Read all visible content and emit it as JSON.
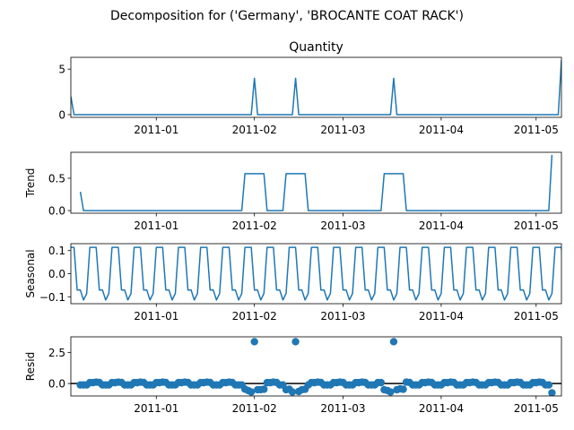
{
  "figure": {
    "suptitle": "Decomposition for ('Germany', 'BROCANTE COAT RACK')"
  },
  "colors": {
    "line": "#1f77b4",
    "marker": "#1f77b4",
    "zero_line": "#000000",
    "axes": "#000000",
    "background": "#ffffff"
  },
  "chart_data": [
    {
      "type": "line",
      "title": "Quantity",
      "ylabel": "",
      "xlim": [
        "2010-12-05",
        "2011-05-09"
      ],
      "ylim": [
        -0.3,
        6.3
      ],
      "yticks": [
        0,
        5
      ],
      "xticks": [
        "2011-01-01",
        "2011-02-01",
        "2011-03-01",
        "2011-04-01",
        "2011-05-01"
      ],
      "xtick_labels": [
        "2011-01",
        "2011-02",
        "2011-03",
        "2011-04",
        "2011-05"
      ],
      "x": [
        "2010-12-05",
        "2010-12-06",
        "2011-01-31",
        "2011-02-01",
        "2011-02-02",
        "2011-02-13",
        "2011-02-14",
        "2011-02-15",
        "2011-03-16",
        "2011-03-17",
        "2011-03-18",
        "2011-05-08",
        "2011-05-09"
      ],
      "y": [
        2,
        0,
        0,
        4,
        0,
        0,
        4,
        0,
        0,
        4,
        0,
        0,
        6
      ]
    },
    {
      "type": "line",
      "title": "",
      "ylabel": "Trend",
      "xlim": [
        "2010-12-05",
        "2011-05-09"
      ],
      "ylim": [
        -0.04,
        0.9
      ],
      "yticks": [
        0.0,
        0.5
      ],
      "xticks": [
        "2011-01-01",
        "2011-02-01",
        "2011-03-01",
        "2011-04-01",
        "2011-05-01"
      ],
      "xtick_labels": [
        "2011-01",
        "2011-02",
        "2011-03",
        "2011-04",
        "2011-05"
      ],
      "x": [
        "2010-12-08",
        "2010-12-09",
        "2011-01-28",
        "2011-01-29",
        "2011-02-04",
        "2011-02-05",
        "2011-02-10",
        "2011-02-11",
        "2011-02-17",
        "2011-02-18",
        "2011-03-13",
        "2011-03-14",
        "2011-03-20",
        "2011-03-21",
        "2011-05-05",
        "2011-05-06"
      ],
      "y": [
        0.29,
        0.0,
        0.0,
        0.57,
        0.57,
        0.0,
        0.0,
        0.57,
        0.57,
        0.0,
        0.0,
        0.57,
        0.57,
        0.0,
        0.0,
        0.86
      ]
    },
    {
      "type": "line",
      "title": "",
      "ylabel": "Seasonal",
      "xlim": [
        "2010-12-05",
        "2011-05-09"
      ],
      "ylim": [
        -0.13,
        0.13
      ],
      "yticks": [
        -0.1,
        0.0,
        0.1
      ],
      "xticks": [
        "2011-01-01",
        "2011-02-01",
        "2011-03-01",
        "2011-04-01",
        "2011-05-01"
      ],
      "xtick_labels": [
        "2011-01",
        "2011-02",
        "2011-03",
        "2011-04",
        "2011-05"
      ],
      "period_days": 7,
      "period_start": "2010-12-04",
      "weekly_pattern": [
        0.114,
        0.114,
        0.114,
        -0.071,
        -0.071,
        -0.114,
        -0.086
      ]
    },
    {
      "type": "scatter",
      "title": "",
      "ylabel": "Resid",
      "xlim": [
        "2010-12-05",
        "2011-05-09"
      ],
      "ylim": [
        -1.0,
        3.75
      ],
      "yticks": [
        0.0,
        2.5
      ],
      "xticks": [
        "2011-01-01",
        "2011-02-01",
        "2011-03-01",
        "2011-04-01",
        "2011-05-01"
      ],
      "xtick_labels": [
        "2011-01",
        "2011-02",
        "2011-03",
        "2011-04",
        "2011-05"
      ],
      "zero_line": true,
      "x_start": "2010-12-08",
      "x_end": "2011-05-06",
      "baseline_pattern": [
        -0.114,
        -0.114,
        -0.114,
        0.071,
        0.071,
        0.114,
        0.086
      ],
      "special_points": [
        {
          "x": "2011-01-29",
          "y": -0.45
        },
        {
          "x": "2011-01-30",
          "y": -0.56
        },
        {
          "x": "2011-01-31",
          "y": -0.68
        },
        {
          "x": "2011-02-01",
          "y": 3.36
        },
        {
          "x": "2011-02-02",
          "y": -0.5
        },
        {
          "x": "2011-02-03",
          "y": -0.49
        },
        {
          "x": "2011-02-04",
          "y": -0.46
        },
        {
          "x": "2011-02-11",
          "y": -0.5
        },
        {
          "x": "2011-02-12",
          "y": -0.46
        },
        {
          "x": "2011-02-13",
          "y": -0.68
        },
        {
          "x": "2011-02-14",
          "y": 3.36
        },
        {
          "x": "2011-02-15",
          "y": -0.64
        },
        {
          "x": "2011-02-16",
          "y": -0.5
        },
        {
          "x": "2011-02-17",
          "y": -0.46
        },
        {
          "x": "2011-03-14",
          "y": -0.5
        },
        {
          "x": "2011-03-15",
          "y": -0.56
        },
        {
          "x": "2011-03-16",
          "y": -0.68
        },
        {
          "x": "2011-03-17",
          "y": 3.36
        },
        {
          "x": "2011-03-18",
          "y": -0.5
        },
        {
          "x": "2011-03-19",
          "y": -0.43
        },
        {
          "x": "2011-03-20",
          "y": -0.46
        },
        {
          "x": "2011-05-06",
          "y": -0.75
        }
      ]
    }
  ]
}
